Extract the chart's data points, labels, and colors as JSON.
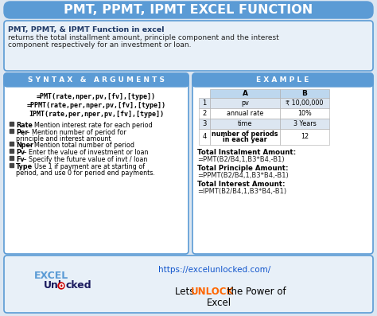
{
  "title": "PMT, PPMT, IPMT EXCEL FUNCTION",
  "title_bg": "#5b9bd5",
  "title_color": "white",
  "intro_bold": "PMT, PPMT, & IPMT Function in excel",
  "intro_bg": "#dce6f1",
  "syntax_header": "S Y N T A X   &   A R G U M E N T S",
  "syntax_header_bg": "#5b9bd5",
  "syntax_header_color": "white",
  "syntax_lines": [
    "=PMT(rate,nper,pv,[fv],[type])",
    "=PPMT(rate,per,nper,pv,[fv],[type])",
    "IPMT(rate,per,nper,pv,[fv],[type])"
  ],
  "bullet_items": [
    [
      "Rate",
      " – Mention interest rate for each period",
      false
    ],
    [
      "Per",
      " – Mention number of period for\nprinciple and interest amount",
      true
    ],
    [
      "Nper",
      " – Mention total number of period",
      false
    ],
    [
      "Pv",
      " – Enter the value of investment or loan",
      false
    ],
    [
      "Fv",
      " – Specify the future value of invt / loan",
      false
    ],
    [
      "Type",
      " – Use 1 if payment are at starting of\nperiod, and use 0 for period end payments.",
      true
    ]
  ],
  "example_header": "E X A M P L E",
  "example_header_bg": "#5b9bd5",
  "example_header_color": "white",
  "table_col_A": "A",
  "table_col_B": "B",
  "table_rows": [
    [
      "1",
      "pv",
      "₹ 10,00,000",
      false
    ],
    [
      "2",
      "annual rate",
      "10%",
      false
    ],
    [
      "3",
      "time",
      "3 Years",
      false
    ],
    [
      "4",
      "number of periods\nin each year",
      "12",
      true
    ]
  ],
  "result_lines": [
    [
      "Total Instalment Amount:",
      "=PMT(B2/B4,1,B3*B4,-B1)"
    ],
    [
      "Total Principle Amount:",
      "=PPMT(B2/B4,1,B3*B4,-B1)"
    ],
    [
      "Total Interest Amount:",
      "=IPMT(B2/B4,1,B3*B4,-B1)"
    ]
  ],
  "outer_bg": "#dce6f1",
  "border_color": "#5b9bd5"
}
